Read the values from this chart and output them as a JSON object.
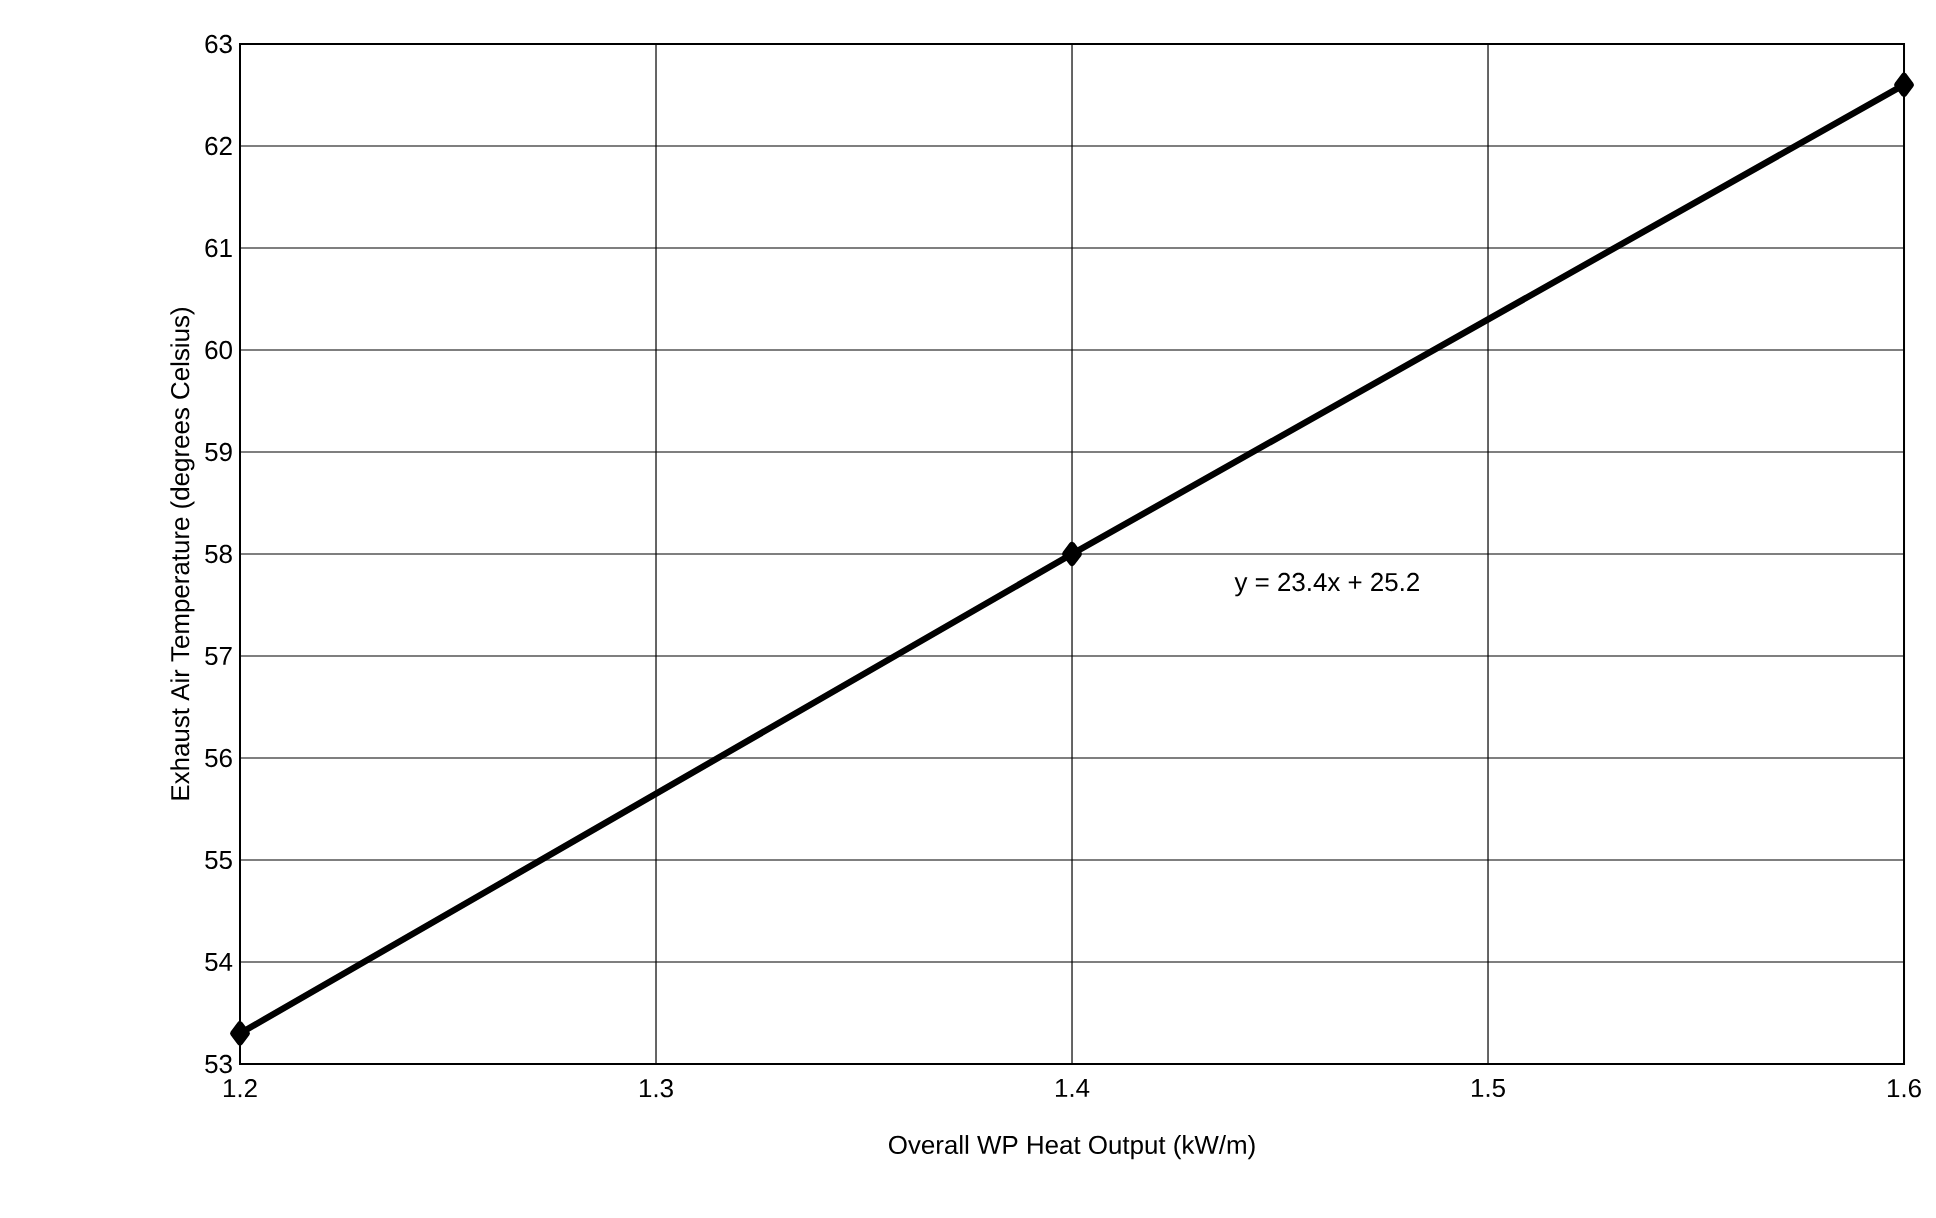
{
  "chart_data": {
    "type": "line",
    "xlabel": "Overall WP Heat Output (kW/m)",
    "ylabel": "Exhaust Air Temperature (degrees Celsius)",
    "x": [
      1.2,
      1.4,
      1.6
    ],
    "series": [
      {
        "color": "#000000",
        "values": [
          53.3,
          58.0,
          62.6
        ]
      }
    ],
    "xlim": [
      1.2,
      1.6
    ],
    "xticks": [
      1.2,
      1.3,
      1.4,
      1.5,
      1.6
    ],
    "ylim": [
      53,
      63
    ],
    "yticks": [
      53,
      54,
      55,
      56,
      57,
      58,
      59,
      60,
      61,
      62,
      63
    ],
    "grid": true,
    "marker": "diamond",
    "line_style": "solid",
    "annotations": [
      "y = 23.4x + 25.2"
    ]
  }
}
